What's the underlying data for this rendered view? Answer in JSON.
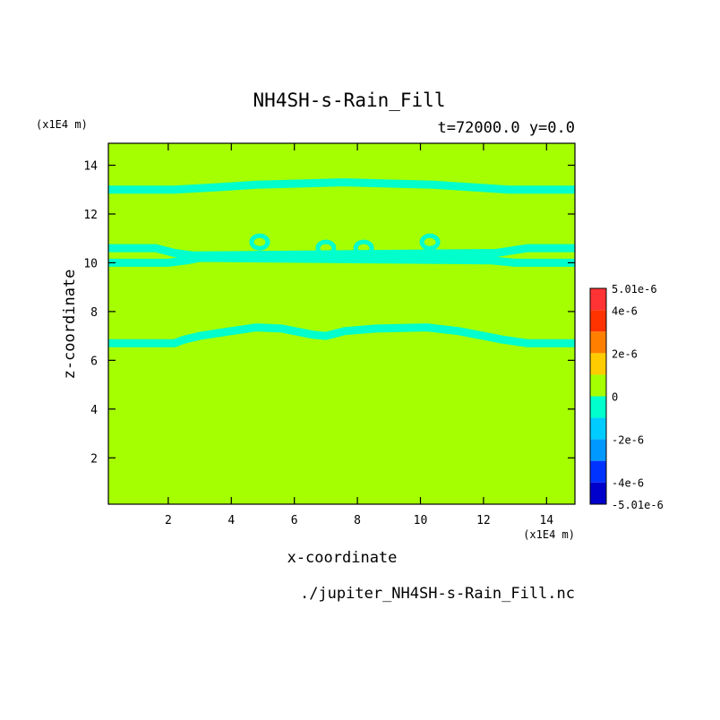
{
  "chart_data": {
    "type": "heatmap",
    "title": "NH4SH-s-Rain_Fill",
    "subtitle": "t=72000.0 y=0.0",
    "xlabel": "x-coordinate",
    "ylabel": "z-coordinate",
    "x_unit": "(x1E4 m)",
    "z_unit": "(x1E4 m)",
    "xlim": [
      0.1,
      14.9
    ],
    "ylim": [
      0.1,
      14.9
    ],
    "x_ticks": [
      "2",
      "4",
      "6",
      "8",
      "10",
      "12",
      "14"
    ],
    "y_ticks": [
      "2",
      "4",
      "6",
      "8",
      "10",
      "12",
      "14"
    ],
    "field_value": 0,
    "field_color": "#a5ff00",
    "negative_band_color": "#00ffcc",
    "negative_band_value": -5e-07,
    "negative_bands": [
      {
        "name": "lower band",
        "z": [
          6.7,
          6.7,
          6.85,
          7.0,
          7.2,
          7.35,
          7.3,
          7.05,
          7.0,
          7.2,
          7.3,
          7.35,
          7.2,
          7.0,
          6.85,
          6.7,
          6.7
        ],
        "x": [
          0.1,
          2.2,
          2.5,
          3.0,
          4.0,
          4.8,
          5.6,
          6.6,
          7.0,
          7.6,
          8.6,
          10.2,
          11.2,
          12.0,
          12.6,
          13.4,
          14.9
        ]
      },
      {
        "name": "middle band upper",
        "z": [
          10.6,
          10.6,
          10.4,
          10.3,
          10.4,
          10.6,
          10.6
        ],
        "x": [
          0.1,
          1.6,
          2.2,
          2.8,
          12.4,
          13.4,
          14.9
        ]
      },
      {
        "name": "middle band lower",
        "z": [
          10.0,
          10.0,
          10.1,
          10.2,
          10.1,
          10.0,
          10.0
        ],
        "x": [
          0.1,
          2.0,
          2.6,
          3.0,
          12.2,
          13.0,
          14.9
        ]
      },
      {
        "name": "upper band",
        "z": [
          13.0,
          13.0,
          13.1,
          13.2,
          13.3,
          13.2,
          13.1,
          13.0,
          13.0
        ],
        "x": [
          0.1,
          2.2,
          3.6,
          4.8,
          7.6,
          10.4,
          11.6,
          12.8,
          14.9
        ]
      }
    ],
    "negative_blobs": [
      {
        "x": 4.9,
        "z": 10.85
      },
      {
        "x": 7.0,
        "z": 10.6
      },
      {
        "x": 8.2,
        "z": 10.6
      },
      {
        "x": 10.3,
        "z": 10.85
      }
    ],
    "colorbar": {
      "labels": [
        "5.01e-6",
        "4e-6",
        "2e-6",
        "0",
        "-2e-6",
        "-4e-6",
        "-5.01e-6"
      ],
      "values": [
        5.01e-06,
        4e-06,
        2e-06,
        0,
        -2e-06,
        -4e-06,
        -5.01e-06
      ],
      "vmin": -5.01e-06,
      "vmax": 5.01e-06,
      "bins": [
        {
          "from": 4e-06,
          "to": 5.01e-06,
          "color": "#ff3333"
        },
        {
          "from": 3e-06,
          "to": 4e-06,
          "color": "#ff3300"
        },
        {
          "from": 2e-06,
          "to": 3e-06,
          "color": "#ff8000"
        },
        {
          "from": 1e-06,
          "to": 2e-06,
          "color": "#ffcc00"
        },
        {
          "from": 0,
          "to": 1e-06,
          "color": "#a5ff00"
        },
        {
          "from": -1e-06,
          "to": 0,
          "color": "#00ffcc"
        },
        {
          "from": -2e-06,
          "to": -1e-06,
          "color": "#00ccff"
        },
        {
          "from": -3e-06,
          "to": -2e-06,
          "color": "#0099ff"
        },
        {
          "from": -4e-06,
          "to": -3e-06,
          "color": "#0033ff"
        },
        {
          "from": -5.01e-06,
          "to": -4e-06,
          "color": "#0000cc"
        }
      ]
    },
    "grid": false,
    "legend": "right colorbar"
  },
  "footer": {
    "filename": "./jupiter_NH4SH-s-Rain_Fill.nc"
  }
}
